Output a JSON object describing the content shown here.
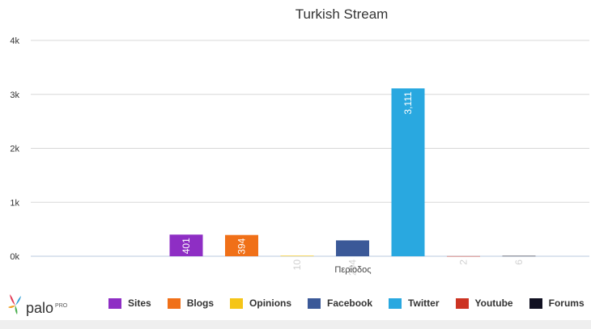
{
  "chart_data": {
    "type": "bar",
    "title": "Turkish Stream",
    "xlabel": "Περίοδος",
    "ylabel": "",
    "ylim": [
      0,
      4000
    ],
    "yticks": [
      "0k",
      "1k",
      "2k",
      "3k",
      "4k"
    ],
    "series": [
      {
        "name": "Sites",
        "value": 401,
        "label": "401",
        "color": "#8e2ec4"
      },
      {
        "name": "Blogs",
        "value": 394,
        "label": "394",
        "color": "#f07018"
      },
      {
        "name": "Opinions",
        "value": 10,
        "label": "10",
        "color": "#f5c518"
      },
      {
        "name": "Facebook",
        "value": 294,
        "label": "294",
        "color": "#3b5998"
      },
      {
        "name": "Twitter",
        "value": 3111,
        "label": "3,111",
        "color": "#29a8e0"
      },
      {
        "name": "Youtube",
        "value": 2,
        "label": "2",
        "color": "#cc3322"
      },
      {
        "name": "Forums",
        "value": 6,
        "label": "6",
        "color": "#111122"
      }
    ],
    "legend": "bottom",
    "grid": true
  },
  "logo": {
    "text": "palo",
    "sup": "PRO"
  }
}
